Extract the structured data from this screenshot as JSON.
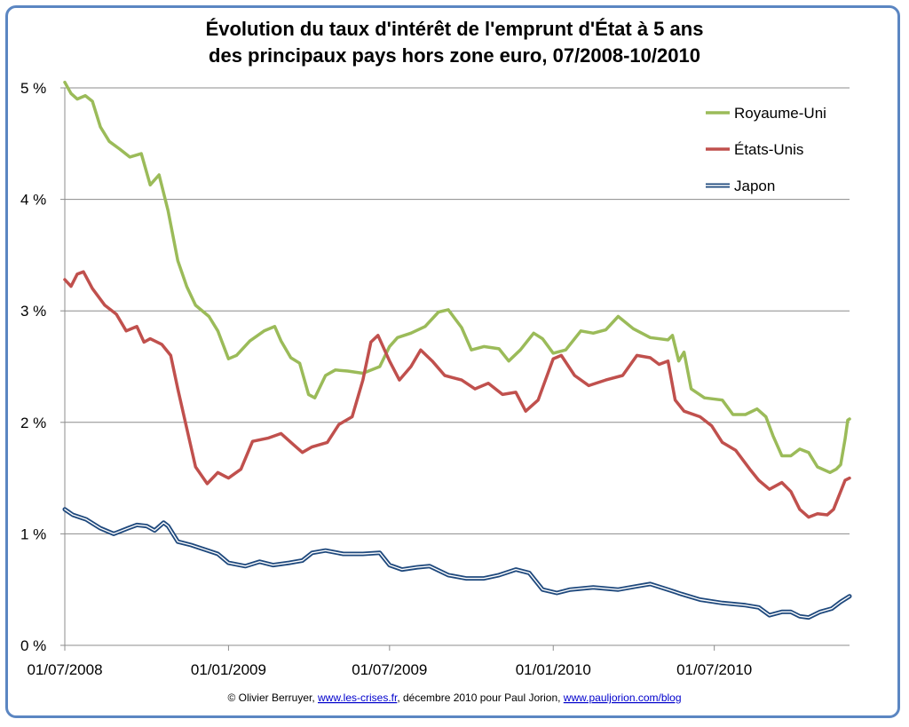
{
  "chart_data": {
    "type": "line",
    "title_lines": [
      "Évolution du taux d'intérêt de l'emprunt d'État à 5 ans",
      "des principaux pays hors zone euro, 07/2008-10/2010"
    ],
    "xlabel": "",
    "ylabel": "",
    "x_range": [
      "2008-07-01",
      "2010-11-30"
    ],
    "ylim": [
      0,
      5
    ],
    "y_ticks": [
      {
        "value": 0,
        "label": "0 %"
      },
      {
        "value": 1,
        "label": "1 %"
      },
      {
        "value": 2,
        "label": "2 %"
      },
      {
        "value": 3,
        "label": "3 %"
      },
      {
        "value": 4,
        "label": "4 %"
      },
      {
        "value": 5,
        "label": "5 %"
      }
    ],
    "x_ticks": [
      {
        "date": "2008-07-01",
        "label": "01/07/2008"
      },
      {
        "date": "2009-01-01",
        "label": "01/01/2009"
      },
      {
        "date": "2009-07-01",
        "label": "01/07/2009"
      },
      {
        "date": "2010-01-01",
        "label": "01/01/2010"
      },
      {
        "date": "2010-07-01",
        "label": "01/07/2010"
      }
    ],
    "grid": "horizontal",
    "legend_position": "top-right",
    "series": [
      {
        "name": "Royaume-Uni",
        "color": "#9bbb59",
        "style": "solid",
        "points": [
          [
            "2008-07-01",
            5.05
          ],
          [
            "2008-07-08",
            4.95
          ],
          [
            "2008-07-15",
            4.9
          ],
          [
            "2008-07-24",
            4.93
          ],
          [
            "2008-08-01",
            4.88
          ],
          [
            "2008-08-10",
            4.65
          ],
          [
            "2008-08-20",
            4.52
          ],
          [
            "2008-09-01",
            4.45
          ],
          [
            "2008-09-12",
            4.38
          ],
          [
            "2008-09-25",
            4.41
          ],
          [
            "2008-10-05",
            4.13
          ],
          [
            "2008-10-15",
            4.22
          ],
          [
            "2008-10-25",
            3.9
          ],
          [
            "2008-11-05",
            3.45
          ],
          [
            "2008-11-15",
            3.22
          ],
          [
            "2008-11-25",
            3.05
          ],
          [
            "2008-12-10",
            2.95
          ],
          [
            "2008-12-20",
            2.82
          ],
          [
            "2009-01-01",
            2.57
          ],
          [
            "2009-01-10",
            2.6
          ],
          [
            "2009-01-25",
            2.73
          ],
          [
            "2009-02-10",
            2.82
          ],
          [
            "2009-02-22",
            2.86
          ],
          [
            "2009-03-01",
            2.73
          ],
          [
            "2009-03-12",
            2.58
          ],
          [
            "2009-03-22",
            2.53
          ],
          [
            "2009-04-01",
            2.25
          ],
          [
            "2009-04-08",
            2.22
          ],
          [
            "2009-04-20",
            2.42
          ],
          [
            "2009-05-01",
            2.47
          ],
          [
            "2009-05-15",
            2.46
          ],
          [
            "2009-06-01",
            2.44
          ],
          [
            "2009-06-20",
            2.5
          ],
          [
            "2009-07-01",
            2.68
          ],
          [
            "2009-07-10",
            2.76
          ],
          [
            "2009-07-25",
            2.8
          ],
          [
            "2009-08-10",
            2.86
          ],
          [
            "2009-08-25",
            2.99
          ],
          [
            "2009-09-05",
            3.01
          ],
          [
            "2009-09-20",
            2.85
          ],
          [
            "2009-10-01",
            2.65
          ],
          [
            "2009-10-15",
            2.68
          ],
          [
            "2009-11-01",
            2.66
          ],
          [
            "2009-11-12",
            2.55
          ],
          [
            "2009-11-25",
            2.65
          ],
          [
            "2009-12-10",
            2.8
          ],
          [
            "2009-12-20",
            2.75
          ],
          [
            "2010-01-01",
            2.62
          ],
          [
            "2010-01-15",
            2.65
          ],
          [
            "2010-02-01",
            2.82
          ],
          [
            "2010-02-15",
            2.8
          ],
          [
            "2010-03-01",
            2.83
          ],
          [
            "2010-03-15",
            2.95
          ],
          [
            "2010-04-01",
            2.84
          ],
          [
            "2010-04-20",
            2.76
          ],
          [
            "2010-05-10",
            2.74
          ],
          [
            "2010-05-15",
            2.78
          ],
          [
            "2010-05-22",
            2.55
          ],
          [
            "2010-05-28",
            2.63
          ],
          [
            "2010-06-05",
            2.3
          ],
          [
            "2010-06-20",
            2.22
          ],
          [
            "2010-07-10",
            2.2
          ],
          [
            "2010-07-22",
            2.07
          ],
          [
            "2010-08-05",
            2.07
          ],
          [
            "2010-08-18",
            2.12
          ],
          [
            "2010-08-28",
            2.05
          ],
          [
            "2010-09-05",
            1.88
          ],
          [
            "2010-09-15",
            1.7
          ],
          [
            "2010-09-25",
            1.7
          ],
          [
            "2010-10-05",
            1.76
          ],
          [
            "2010-10-15",
            1.73
          ],
          [
            "2010-10-25",
            1.6
          ],
          [
            "2010-11-08",
            1.55
          ],
          [
            "2010-11-15",
            1.58
          ],
          [
            "2010-11-20",
            1.62
          ],
          [
            "2010-11-25",
            1.85
          ],
          [
            "2010-11-28",
            2.02
          ],
          [
            "2010-11-30",
            2.03
          ]
        ]
      },
      {
        "name": "États-Unis",
        "color": "#c0504d",
        "style": "solid",
        "points": [
          [
            "2008-07-01",
            3.28
          ],
          [
            "2008-07-08",
            3.22
          ],
          [
            "2008-07-15",
            3.33
          ],
          [
            "2008-07-22",
            3.35
          ],
          [
            "2008-08-01",
            3.2
          ],
          [
            "2008-08-15",
            3.05
          ],
          [
            "2008-08-28",
            2.97
          ],
          [
            "2008-09-08",
            2.82
          ],
          [
            "2008-09-20",
            2.86
          ],
          [
            "2008-09-28",
            2.72
          ],
          [
            "2008-10-05",
            2.75
          ],
          [
            "2008-10-18",
            2.7
          ],
          [
            "2008-10-28",
            2.6
          ],
          [
            "2008-11-05",
            2.3
          ],
          [
            "2008-11-15",
            1.95
          ],
          [
            "2008-11-25",
            1.6
          ],
          [
            "2008-12-08",
            1.45
          ],
          [
            "2008-12-20",
            1.55
          ],
          [
            "2009-01-01",
            1.5
          ],
          [
            "2009-01-15",
            1.58
          ],
          [
            "2009-01-28",
            1.83
          ],
          [
            "2009-02-15",
            1.86
          ],
          [
            "2009-03-01",
            1.9
          ],
          [
            "2009-03-15",
            1.8
          ],
          [
            "2009-03-25",
            1.73
          ],
          [
            "2009-04-05",
            1.78
          ],
          [
            "2009-04-22",
            1.82
          ],
          [
            "2009-05-05",
            1.98
          ],
          [
            "2009-05-20",
            2.05
          ],
          [
            "2009-06-01",
            2.38
          ],
          [
            "2009-06-10",
            2.72
          ],
          [
            "2009-06-18",
            2.78
          ],
          [
            "2009-07-01",
            2.55
          ],
          [
            "2009-07-12",
            2.38
          ],
          [
            "2009-07-25",
            2.5
          ],
          [
            "2009-08-05",
            2.65
          ],
          [
            "2009-08-18",
            2.55
          ],
          [
            "2009-09-01",
            2.42
          ],
          [
            "2009-09-20",
            2.38
          ],
          [
            "2009-10-05",
            2.3
          ],
          [
            "2009-10-20",
            2.35
          ],
          [
            "2009-11-05",
            2.25
          ],
          [
            "2009-11-20",
            2.27
          ],
          [
            "2009-12-01",
            2.1
          ],
          [
            "2009-12-15",
            2.2
          ],
          [
            "2010-01-01",
            2.57
          ],
          [
            "2010-01-10",
            2.6
          ],
          [
            "2010-01-25",
            2.42
          ],
          [
            "2010-02-10",
            2.33
          ],
          [
            "2010-03-01",
            2.38
          ],
          [
            "2010-03-20",
            2.42
          ],
          [
            "2010-04-05",
            2.6
          ],
          [
            "2010-04-20",
            2.58
          ],
          [
            "2010-04-30",
            2.52
          ],
          [
            "2010-05-10",
            2.55
          ],
          [
            "2010-05-18",
            2.2
          ],
          [
            "2010-05-28",
            2.1
          ],
          [
            "2010-06-15",
            2.05
          ],
          [
            "2010-06-28",
            1.97
          ],
          [
            "2010-07-10",
            1.82
          ],
          [
            "2010-07-25",
            1.75
          ],
          [
            "2010-08-10",
            1.58
          ],
          [
            "2010-08-20",
            1.48
          ],
          [
            "2010-09-01",
            1.4
          ],
          [
            "2010-09-15",
            1.46
          ],
          [
            "2010-09-25",
            1.38
          ],
          [
            "2010-10-05",
            1.22
          ],
          [
            "2010-10-15",
            1.15
          ],
          [
            "2010-10-25",
            1.18
          ],
          [
            "2010-11-05",
            1.17
          ],
          [
            "2010-11-12",
            1.22
          ],
          [
            "2010-11-20",
            1.38
          ],
          [
            "2010-11-25",
            1.48
          ],
          [
            "2010-11-30",
            1.5
          ]
        ]
      },
      {
        "name": "Japon",
        "color": "#1f497d",
        "style": "double",
        "points": [
          [
            "2008-07-01",
            1.22
          ],
          [
            "2008-07-10",
            1.17
          ],
          [
            "2008-07-25",
            1.13
          ],
          [
            "2008-08-10",
            1.05
          ],
          [
            "2008-08-25",
            1.0
          ],
          [
            "2008-09-10",
            1.05
          ],
          [
            "2008-09-20",
            1.08
          ],
          [
            "2008-10-01",
            1.07
          ],
          [
            "2008-10-10",
            1.03
          ],
          [
            "2008-10-20",
            1.1
          ],
          [
            "2008-10-25",
            1.07
          ],
          [
            "2008-11-05",
            0.93
          ],
          [
            "2008-11-20",
            0.9
          ],
          [
            "2008-12-05",
            0.86
          ],
          [
            "2008-12-20",
            0.82
          ],
          [
            "2009-01-01",
            0.74
          ],
          [
            "2009-01-20",
            0.71
          ],
          [
            "2009-02-05",
            0.75
          ],
          [
            "2009-02-20",
            0.72
          ],
          [
            "2009-03-10",
            0.74
          ],
          [
            "2009-03-25",
            0.76
          ],
          [
            "2009-04-05",
            0.83
          ],
          [
            "2009-04-20",
            0.85
          ],
          [
            "2009-05-10",
            0.82
          ],
          [
            "2009-06-01",
            0.82
          ],
          [
            "2009-06-20",
            0.83
          ],
          [
            "2009-07-01",
            0.72
          ],
          [
            "2009-07-15",
            0.68
          ],
          [
            "2009-08-01",
            0.7
          ],
          [
            "2009-08-15",
            0.71
          ],
          [
            "2009-09-05",
            0.63
          ],
          [
            "2009-09-25",
            0.6
          ],
          [
            "2009-10-15",
            0.6
          ],
          [
            "2009-11-01",
            0.63
          ],
          [
            "2009-11-20",
            0.68
          ],
          [
            "2009-12-05",
            0.65
          ],
          [
            "2009-12-20",
            0.5
          ],
          [
            "2010-01-05",
            0.47
          ],
          [
            "2010-01-20",
            0.5
          ],
          [
            "2010-02-15",
            0.52
          ],
          [
            "2010-03-15",
            0.5
          ],
          [
            "2010-04-05",
            0.53
          ],
          [
            "2010-04-20",
            0.55
          ],
          [
            "2010-05-10",
            0.5
          ],
          [
            "2010-05-25",
            0.46
          ],
          [
            "2010-06-15",
            0.41
          ],
          [
            "2010-07-10",
            0.38
          ],
          [
            "2010-08-05",
            0.36
          ],
          [
            "2010-08-20",
            0.34
          ],
          [
            "2010-09-01",
            0.27
          ],
          [
            "2010-09-15",
            0.3
          ],
          [
            "2010-09-25",
            0.3
          ],
          [
            "2010-10-05",
            0.26
          ],
          [
            "2010-10-15",
            0.25
          ],
          [
            "2010-10-28",
            0.3
          ],
          [
            "2010-11-10",
            0.33
          ],
          [
            "2010-11-20",
            0.39
          ],
          [
            "2010-11-30",
            0.44
          ]
        ]
      }
    ]
  },
  "footer": {
    "prefix": "© Olivier Berruyer, ",
    "link1": "www.les-crises.fr",
    "middle": ", décembre 2010 pour  Paul Jorion, ",
    "link2": "www.pauljorion.com/blog"
  }
}
